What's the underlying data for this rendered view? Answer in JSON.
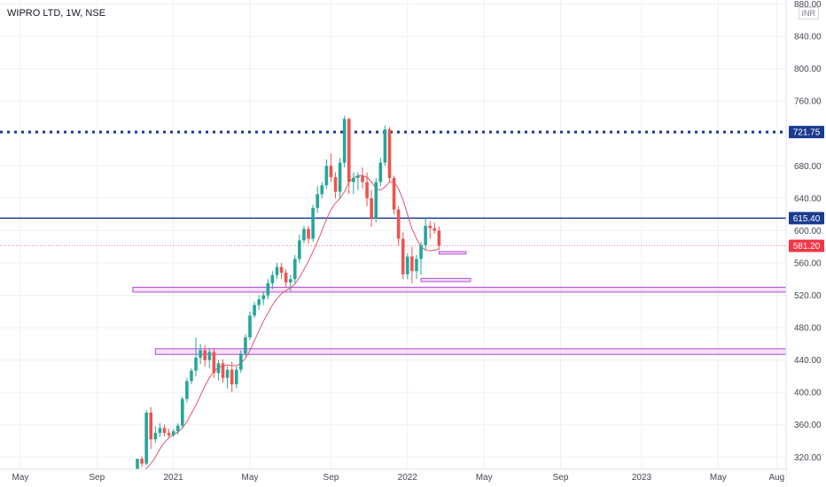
{
  "header": {
    "symbol": "WIPRO LTD, 1W, NSE",
    "currency": "INR"
  },
  "colors": {
    "up": "#26a69a",
    "down": "#ef5350",
    "ma": "#e0556f",
    "hline": "#1a3b8f",
    "zone_stroke": "#b24ad6",
    "zone_fill": "#f3d4f6",
    "grid": "#eef0f3",
    "axis_text": "#434651",
    "last_price": "#f23645"
  },
  "chart_data": {
    "type": "candlestick",
    "title": "WIPRO LTD, 1W, NSE",
    "y_axis": {
      "range": [
        305,
        885
      ],
      "ticks": [
        "320.00",
        "360.00",
        "400.00",
        "440.00",
        "480.00",
        "520.00",
        "560.00",
        "600.00",
        "640.00",
        "680.00",
        "720.00",
        "760.00",
        "800.00",
        "840.00",
        "880.00"
      ]
    },
    "x_axis": {
      "ticks": [
        {
          "label": "May",
          "week": -26
        },
        {
          "label": "Sep",
          "week": -9
        },
        {
          "label": "2021",
          "week": 8
        },
        {
          "label": "May",
          "week": 25
        },
        {
          "label": "Sep",
          "week": 43
        },
        {
          "label": "2022",
          "week": 60
        },
        {
          "label": "May",
          "week": 77
        },
        {
          "label": "Sep",
          "week": 94
        },
        {
          "label": "2023",
          "week": 112
        },
        {
          "label": "May",
          "week": 129
        },
        {
          "label": "Aug",
          "week": 142
        }
      ]
    },
    "price_labels": [
      {
        "text": "721.75",
        "value": 721.75,
        "style": "dotted"
      },
      {
        "text": "615.40",
        "value": 615.4,
        "style": "solid"
      },
      {
        "text": "581.20",
        "value": 581.2,
        "style": "last"
      }
    ],
    "zones": [
      {
        "from_week": -1,
        "to_week": 147,
        "low": 524,
        "high": 530
      },
      {
        "from_week": 4,
        "to_week": 150,
        "low": 447,
        "high": 454
      },
      {
        "from_week": 63,
        "to_week": 74,
        "low": 537,
        "high": 541
      },
      {
        "from_week": 67,
        "to_week": 73,
        "low": 571,
        "high": 574
      }
    ],
    "candles": [
      [
        300,
        318,
        300,
        318
      ],
      [
        318,
        321,
        308,
        312
      ],
      [
        312,
        378,
        310,
        375
      ],
      [
        375,
        382,
        330,
        342
      ],
      [
        342,
        358,
        338,
        350
      ],
      [
        350,
        362,
        345,
        356
      ],
      [
        356,
        360,
        346,
        350
      ],
      [
        350,
        355,
        344,
        347
      ],
      [
        347,
        355,
        345,
        352
      ],
      [
        352,
        362,
        348,
        359
      ],
      [
        359,
        395,
        356,
        392
      ],
      [
        392,
        418,
        388,
        414
      ],
      [
        414,
        430,
        410,
        427
      ],
      [
        427,
        468,
        420,
        443
      ],
      [
        443,
        460,
        435,
        452
      ],
      [
        452,
        458,
        432,
        440
      ],
      [
        440,
        455,
        430,
        450
      ],
      [
        450,
        455,
        418,
        424
      ],
      [
        424,
        440,
        415,
        436
      ],
      [
        436,
        441,
        412,
        418
      ],
      [
        418,
        432,
        405,
        428
      ],
      [
        428,
        438,
        400,
        410
      ],
      [
        410,
        432,
        405,
        428
      ],
      [
        428,
        452,
        424,
        448
      ],
      [
        448,
        472,
        444,
        468
      ],
      [
        468,
        500,
        465,
        495
      ],
      [
        495,
        512,
        492,
        508
      ],
      [
        508,
        520,
        502,
        515
      ],
      [
        515,
        525,
        508,
        520
      ],
      [
        520,
        540,
        515,
        535
      ],
      [
        535,
        550,
        528,
        545
      ],
      [
        545,
        560,
        540,
        555
      ],
      [
        555,
        560,
        540,
        548
      ],
      [
        548,
        552,
        530,
        536
      ],
      [
        536,
        545,
        525,
        540
      ],
      [
        540,
        570,
        535,
        565
      ],
      [
        565,
        595,
        560,
        588
      ],
      [
        588,
        606,
        584,
        602
      ],
      [
        602,
        606,
        584,
        590
      ],
      [
        590,
        632,
        586,
        628
      ],
      [
        628,
        655,
        622,
        645
      ],
      [
        645,
        660,
        640,
        656
      ],
      [
        656,
        688,
        652,
        680
      ],
      [
        680,
        695,
        660,
        666
      ],
      [
        666,
        672,
        640,
        648
      ],
      [
        648,
        690,
        640,
        684
      ],
      [
        684,
        742,
        678,
        738
      ],
      [
        738,
        740,
        645,
        660
      ],
      [
        660,
        672,
        645,
        665
      ],
      [
        665,
        672,
        650,
        668
      ],
      [
        668,
        678,
        652,
        660
      ],
      [
        660,
        672,
        630,
        640
      ],
      [
        640,
        650,
        605,
        615
      ],
      [
        615,
        665,
        610,
        660
      ],
      [
        660,
        690,
        655,
        684
      ],
      [
        684,
        730,
        680,
        725
      ],
      [
        725,
        728,
        660,
        665
      ],
      [
        665,
        668,
        620,
        626
      ],
      [
        626,
        630,
        582,
        590
      ],
      [
        590,
        598,
        540,
        546
      ],
      [
        546,
        572,
        540,
        568
      ],
      [
        568,
        580,
        535,
        550
      ],
      [
        550,
        570,
        540,
        565
      ],
      [
        565,
        586,
        545,
        582
      ],
      [
        582,
        615,
        576,
        606
      ],
      [
        606,
        612,
        590,
        603
      ],
      [
        603,
        610,
        596,
        600
      ],
      [
        600,
        605,
        576,
        581.2
      ]
    ],
    "ma_weeks": 0,
    "ma_values": [
      300,
      302,
      306,
      312,
      320,
      330,
      338,
      344,
      348,
      351,
      356,
      364,
      374,
      384,
      396,
      408,
      418,
      426,
      431,
      433,
      434,
      433,
      433,
      436,
      442,
      452,
      464,
      476,
      488,
      498,
      508,
      516,
      522,
      526,
      529,
      534,
      542,
      552,
      562,
      574,
      586,
      600,
      614,
      626,
      634,
      640,
      648,
      660,
      665,
      668,
      668,
      666,
      660,
      652,
      650,
      654,
      660,
      660,
      652,
      638,
      620,
      602,
      590,
      580,
      576,
      575,
      576,
      577
    ]
  }
}
